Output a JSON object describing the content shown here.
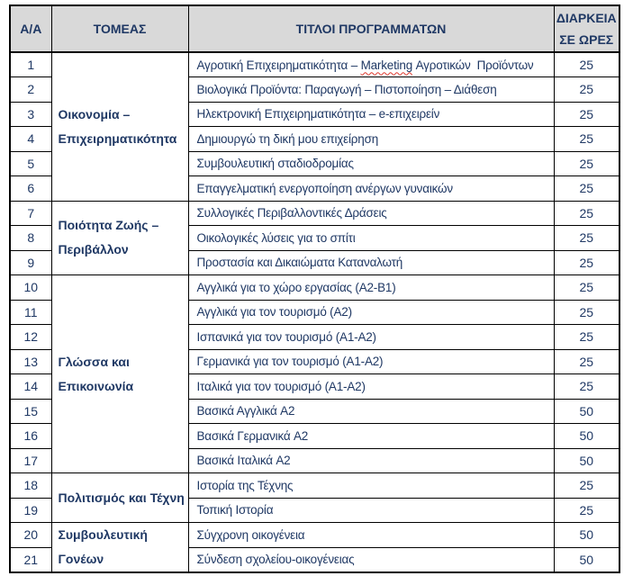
{
  "colors": {
    "text_navy": "#1f3864",
    "header_bg": "#d9d9d9",
    "border_black": "#000000",
    "spellcheck_red": "#e03a2f"
  },
  "table": {
    "headers": [
      {
        "id": "aa",
        "lines": [
          "Α/Α"
        ]
      },
      {
        "id": "sector",
        "lines": [
          "ΤΟΜΕΑΣ"
        ]
      },
      {
        "id": "titles",
        "lines": [
          "ΤΙΤΛΟΙ ΠΡΟΓΡΑΜΜΑΤΩΝ"
        ]
      },
      {
        "id": "duration",
        "lines": [
          "ΔΙΑΡΚΕΙΑ",
          "ΣΕ ΩΡΕΣ"
        ]
      }
    ],
    "groups": [
      {
        "sector_lines": [
          "Οικονομία –",
          "Επιχειρηματικότητα"
        ],
        "rows": [
          {
            "no": "1",
            "title_pre": "Αγροτική Επιχειρηματικότητα – ",
            "title_marked": "Marketing",
            "title_post": " Αγροτικών  Προϊόντων",
            "hours": "25"
          },
          {
            "no": "2",
            "title": "Βιολογικά Προϊόντα: Παραγωγή – Πιστοποίηση – Διάθεση",
            "hours": "25"
          },
          {
            "no": "3",
            "title": "Ηλεκτρονική Επιχειρηματικότητα – e-επιχειρείν",
            "hours": "25"
          },
          {
            "no": "4",
            "title": "Δημιουργώ τη δική μου επιχείρηση",
            "hours": "25"
          },
          {
            "no": "5",
            "title": "Συμβουλευτική σταδιοδρομίας",
            "hours": "25"
          },
          {
            "no": "6",
            "title": "Επαγγελματική ενεργοποίηση ανέργων γυναικών",
            "hours": "25"
          }
        ]
      },
      {
        "sector_lines": [
          "Ποιότητα Ζωής –",
          "Περιβάλλον"
        ],
        "rows": [
          {
            "no": "7",
            "title": "Συλλογικές Περιβαλλοντικές Δράσεις",
            "hours": "25"
          },
          {
            "no": "8",
            "title": "Οικολογικές λύσεις για το σπίτι",
            "hours": "25"
          },
          {
            "no": "9",
            "title": "Προστασία και Δικαιώματα Καταναλωτή",
            "hours": "25"
          }
        ]
      },
      {
        "sector_lines": [
          "Γλώσσα και",
          "Επικοινωνία"
        ],
        "rows": [
          {
            "no": "10",
            "title": "Αγγλικά για το χώρο εργασίας (A2-B1)",
            "hours": "25"
          },
          {
            "no": "11",
            "title": "Αγγλικά για τον τουρισμό (A2)",
            "hours": "25"
          },
          {
            "no": "12",
            "title": "Ισπανικά για τον τουρισμό (A1-A2)",
            "hours": "25"
          },
          {
            "no": "13",
            "title": "Γερμανικά για τον τουρισμό (A1-A2)",
            "hours": "25"
          },
          {
            "no": "14",
            "title": "Ιταλικά για τον τουρισμό (A1-A2)",
            "hours": "25"
          },
          {
            "no": "15",
            "title": "Βασικά Αγγλικά A2",
            "hours": "50"
          },
          {
            "no": "16",
            "title": "Βασικά Γερμανικά A2",
            "hours": "50"
          },
          {
            "no": "17",
            "title": "Βασικά Ιταλικά A2",
            "hours": "50"
          }
        ]
      },
      {
        "sector_lines": [
          "Πολιτισμός και Τέχνη"
        ],
        "rows": [
          {
            "no": "18",
            "title": "Ιστορία της Τέχνης",
            "hours": "25"
          },
          {
            "no": "19",
            "title": "Τοπική Ιστορία",
            "hours": "25"
          }
        ]
      },
      {
        "sector_lines": [
          "Συμβουλευτική Γονέων"
        ],
        "rows": [
          {
            "no": "20",
            "title": "Σύγχρονη οικογένεια",
            "hours": "50"
          },
          {
            "no": "21",
            "title": "Σύνδεση σχολείου-οικογένειας",
            "hours": "50"
          }
        ]
      }
    ]
  }
}
